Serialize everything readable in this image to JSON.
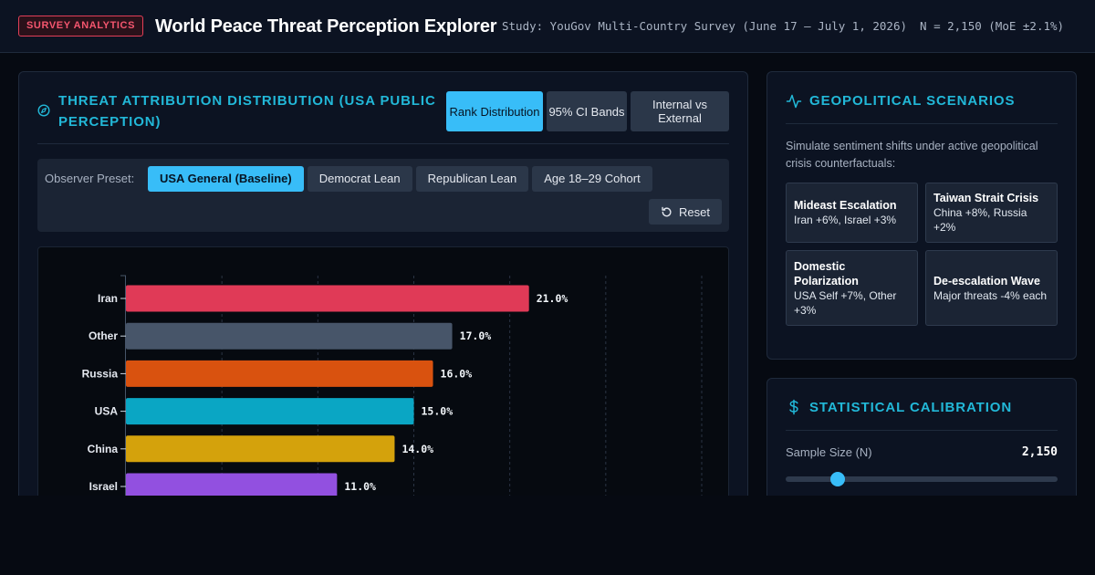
{
  "header": {
    "badge": "SURVEY ANALYTICS",
    "title": "World Peace Threat Perception Explorer",
    "study": "Study: YouGov Multi-Country Survey (June 17 – July 1, 2026)",
    "sample": "N = 2,150 (MoE ±2.1%)"
  },
  "main": {
    "title": "THREAT ATTRIBUTION DISTRIBUTION (USA PUBLIC PERCEPTION)",
    "tabs": [
      {
        "label": "Rank Distribution",
        "active": true
      },
      {
        "label": "95% CI Bands",
        "active": false
      },
      {
        "label": "Internal vs External",
        "active": false
      }
    ],
    "preset_label": "Observer Preset:",
    "presets": [
      {
        "label": "USA General (Baseline)",
        "active": true
      },
      {
        "label": "Democrat Lean",
        "active": false
      },
      {
        "label": "Republican Lean",
        "active": false
      },
      {
        "label": "Age 18–29 Cohort",
        "active": false
      }
    ],
    "reset_label": "Reset"
  },
  "chart_data": {
    "type": "bar",
    "orientation": "horizontal",
    "categories": [
      "Iran",
      "Other",
      "Russia",
      "USA",
      "China",
      "Israel"
    ],
    "values": [
      21.0,
      17.0,
      16.0,
      15.0,
      14.0,
      11.0
    ],
    "value_labels": [
      "21.0%",
      "17.0%",
      "16.0%",
      "15.0%",
      "14.0%",
      "11.0%"
    ],
    "colors": [
      "#e03a57",
      "#475569",
      "#d9520f",
      "#0aa6c4",
      "#d4a20c",
      "#9250e0"
    ],
    "xlim": [
      0,
      30
    ],
    "grid": true
  },
  "scenarios": {
    "title": "GEOPOLITICAL SCENARIOS",
    "description": "Simulate sentiment shifts under active geopolitical crisis counterfactuals:",
    "items": [
      {
        "name": "Mideast Escalation",
        "effect": "Iran +6%, Israel +3%"
      },
      {
        "name": "Taiwan Strait Crisis",
        "effect": "China +8%, Russia +2%"
      },
      {
        "name": "Domestic Polarization",
        "effect": "USA Self +7%, Other +3%"
      },
      {
        "name": "De-escalation Wave",
        "effect": "Major threats -4% each"
      }
    ]
  },
  "stats": {
    "title": "STATISTICAL CALIBRATION",
    "sample_label": "Sample Size (N)",
    "sample_value": "2,150",
    "sample_slider_fraction": 0.19
  }
}
